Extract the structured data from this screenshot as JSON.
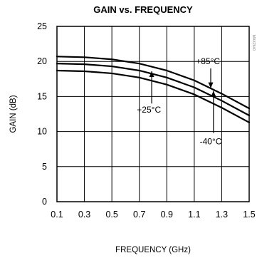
{
  "chart_data": {
    "type": "line",
    "title": "GAIN vs. FREQUENCY",
    "xlabel": "FREQUENCY (GHz)",
    "ylabel": "GAIN  (dB)",
    "xlim": [
      0.1,
      1.5
    ],
    "ylim": [
      0,
      25
    ],
    "xticks": [
      "0.1",
      "0.3",
      "0.5",
      "0.7",
      "0.9",
      "1.1",
      "1.3",
      "1.5"
    ],
    "yticks": [
      "0",
      "5",
      "10",
      "15",
      "20",
      "25"
    ],
    "grid": true,
    "side_code": "MAX2640",
    "series": [
      {
        "name": "+85°C",
        "x": [
          0.1,
          0.3,
          0.5,
          0.7,
          0.9,
          1.1,
          1.3,
          1.5
        ],
        "values": [
          18.7,
          18.6,
          18.3,
          17.7,
          16.7,
          15.3,
          13.4,
          11.3
        ]
      },
      {
        "name": "+25°C",
        "x": [
          0.1,
          0.3,
          0.5,
          0.7,
          0.9,
          1.1,
          1.3,
          1.5
        ],
        "values": [
          19.7,
          19.6,
          19.3,
          18.7,
          17.7,
          16.3,
          14.4,
          12.3
        ]
      },
      {
        "name": "-40°C",
        "x": [
          0.1,
          0.3,
          0.5,
          0.7,
          0.9,
          1.1,
          1.3,
          1.5
        ],
        "values": [
          20.7,
          20.6,
          20.3,
          19.7,
          18.7,
          17.3,
          15.4,
          13.3
        ]
      }
    ],
    "annotations": [
      {
        "label": "+85°C",
        "series": "+85°C",
        "text_x": 1.2,
        "text_y": 19.6,
        "arrow_from": 19.0,
        "arrow_to": 16.2
      },
      {
        "label": "+25°C",
        "series": "+25°C",
        "text_x": 0.77,
        "text_y": 12.7,
        "arrow_from": 14.0,
        "arrow_to": 18.6
      },
      {
        "label": "-40°C",
        "series": "-40°C",
        "text_x": 1.22,
        "text_y": 8.2,
        "arrow_from": 9.8,
        "arrow_to": 15.8
      }
    ]
  }
}
